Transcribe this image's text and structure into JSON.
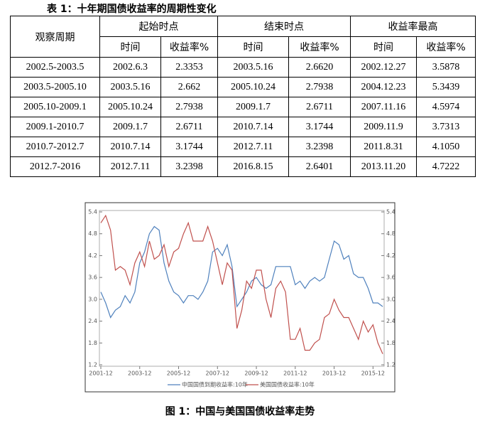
{
  "table": {
    "title": "表 1：十年期国债收益率的周期性变化",
    "header": [
      "观察周期",
      "起始时点",
      "结束时点",
      "收益率最高"
    ],
    "subheader": [
      "时间",
      "收益率%",
      "时间",
      "收益率%",
      "时间",
      "收益率%"
    ],
    "rows": [
      [
        "2002.5-2003.5",
        "2002.6.3",
        "2.3353",
        "2003.5.16",
        "2.6620",
        "2002.12.27",
        "3.5878"
      ],
      [
        "2003.5-2005.10",
        "2003.5.16",
        "2.662",
        "2005.10.24",
        "2.7938",
        "2004.12.23",
        "5.3439"
      ],
      [
        "2005.10-2009.1",
        "2005.10.24",
        "2.7938",
        "2009.1.7",
        "2.6711",
        "2007.11.16",
        "4.5974"
      ],
      [
        "2009.1-2010.7",
        "2009.1.7",
        "2.6711",
        "2010.7.14",
        "3.1744",
        "2009.11.9",
        "3.7313"
      ],
      [
        "2010.7-2012.7",
        "2010.7.14",
        "3.1744",
        "2012.7.11",
        "3.2398",
        "2011.8.31",
        "4.1050"
      ],
      [
        "2012.7-2016",
        "2012.7.11",
        "3.2398",
        "2016.8.15",
        "2.6401",
        "2013.11.20",
        "4.7222"
      ]
    ]
  },
  "chart_data": {
    "type": "line",
    "caption": "图 1：中国与美国国债收益率走势",
    "x": [
      "2001-12",
      "2002-03",
      "2002-06",
      "2002-09",
      "2002-12",
      "2003-03",
      "2003-06",
      "2003-09",
      "2003-12",
      "2004-03",
      "2004-06",
      "2004-09",
      "2004-12",
      "2005-03",
      "2005-06",
      "2005-09",
      "2005-12",
      "2006-03",
      "2006-06",
      "2006-09",
      "2006-12",
      "2007-03",
      "2007-06",
      "2007-09",
      "2007-12",
      "2008-03",
      "2008-06",
      "2008-09",
      "2008-12",
      "2009-03",
      "2009-06",
      "2009-09",
      "2009-12",
      "2010-03",
      "2010-06",
      "2010-09",
      "2010-12",
      "2011-03",
      "2011-06",
      "2011-09",
      "2011-12",
      "2012-03",
      "2012-06",
      "2012-09",
      "2012-12",
      "2013-03",
      "2013-06",
      "2013-09",
      "2013-12",
      "2014-03",
      "2014-06",
      "2014-09",
      "2014-12",
      "2015-03",
      "2015-06",
      "2015-09",
      "2015-12",
      "2016-03",
      "2016-06"
    ],
    "xticks": [
      "2001-12",
      "2003-12",
      "2005-12",
      "2007-12",
      "2009-12",
      "2011-12",
      "2013-12",
      "2015-12"
    ],
    "series": [
      {
        "name": "中国国债到期收益率:10年",
        "color": "#4f81bd",
        "values": [
          3.2,
          2.9,
          2.5,
          2.7,
          2.8,
          3.1,
          2.9,
          3.2,
          4.0,
          4.3,
          4.8,
          5.0,
          4.9,
          4.0,
          3.5,
          3.2,
          3.1,
          2.9,
          3.1,
          3.1,
          3.0,
          3.2,
          3.5,
          4.3,
          4.4,
          4.2,
          4.5,
          3.9,
          2.8,
          3.0,
          3.2,
          3.5,
          3.6,
          3.4,
          3.3,
          3.4,
          3.9,
          3.9,
          3.9,
          3.9,
          3.4,
          3.5,
          3.3,
          3.5,
          3.6,
          3.5,
          3.6,
          4.1,
          4.6,
          4.5,
          4.1,
          4.2,
          3.7,
          3.6,
          3.6,
          3.3,
          2.9,
          2.9,
          2.8
        ]
      },
      {
        "name": "美国国债收益率:10年",
        "color": "#c0504d",
        "axis": "y2",
        "values": [
          5.1,
          5.3,
          4.9,
          3.8,
          3.9,
          3.8,
          3.4,
          4.0,
          4.3,
          3.9,
          4.6,
          4.1,
          4.2,
          4.5,
          3.9,
          4.3,
          4.4,
          4.8,
          5.1,
          4.6,
          4.6,
          4.6,
          5.0,
          4.6,
          4.0,
          3.4,
          4.0,
          3.8,
          2.2,
          2.7,
          3.5,
          3.3,
          3.8,
          3.8,
          3.0,
          2.5,
          3.3,
          3.5,
          3.2,
          1.9,
          1.9,
          2.2,
          1.6,
          1.6,
          1.8,
          1.9,
          2.5,
          2.6,
          3.0,
          2.7,
          2.5,
          2.5,
          2.2,
          1.9,
          2.4,
          2.1,
          2.3,
          1.8,
          1.5
        ]
      }
    ],
    "ylim": [
      1.2,
      5.4
    ],
    "yticks": [
      1.2,
      1.8,
      2.4,
      {
        "value": 3,
        "label": "3.0"
      },
      3.6,
      4.2,
      4.8,
      5.4
    ],
    "y2lim": [
      1.2,
      5.4
    ],
    "y2ticks": [
      1.2,
      1.8,
      2.4,
      {
        "value": 3,
        "label": "3.0"
      },
      3.6,
      4.2,
      4.8,
      5.4
    ]
  }
}
